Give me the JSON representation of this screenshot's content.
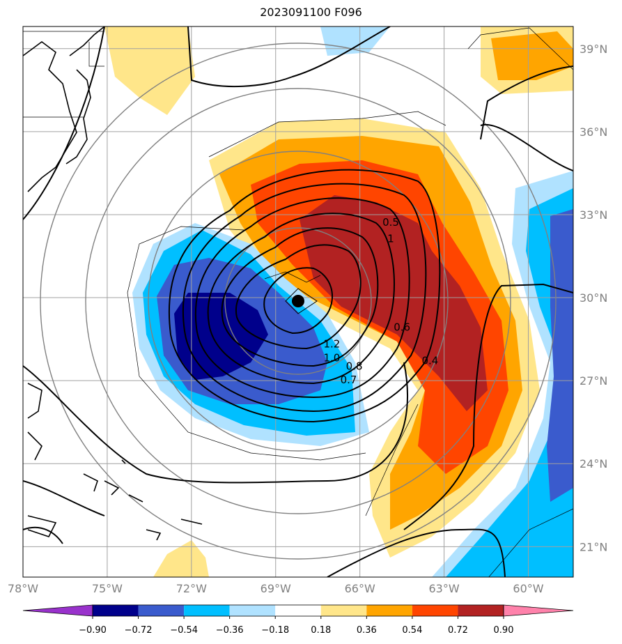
{
  "title": "2023091100 F096",
  "map": {
    "extent": {
      "lon_min": -78,
      "lon_max": -58.4,
      "lat_min": 19.9,
      "lat_max": 39.8
    },
    "storm_center": {
      "lon": -68.2,
      "lat": 29.9
    },
    "lon_ticks": [
      {
        "value": -78,
        "label": "78°W"
      },
      {
        "value": -75,
        "label": "75°W"
      },
      {
        "value": -72,
        "label": "72°W"
      },
      {
        "value": -69,
        "label": "69°W"
      },
      {
        "value": -66,
        "label": "66°W"
      },
      {
        "value": -63,
        "label": "63°W"
      },
      {
        "value": -60,
        "label": "60°W"
      }
    ],
    "lat_ticks": [
      {
        "value": 21,
        "label": "21°N"
      },
      {
        "value": 24,
        "label": "24°N"
      },
      {
        "value": 27,
        "label": "27°N"
      },
      {
        "value": 30,
        "label": "30°N"
      },
      {
        "value": 33,
        "label": "33°N"
      },
      {
        "value": 36,
        "label": "36°N"
      },
      {
        "value": 39,
        "label": "39°N"
      }
    ],
    "range_rings": "concentric grey circles around the storm center",
    "contour_labels": [
      {
        "text": "1.2",
        "lon": -67.0,
        "lat": 28.2
      },
      {
        "text": "1.0",
        "lon": -67.0,
        "lat": 27.7
      },
      {
        "text": "0.8",
        "lon": -66.2,
        "lat": 27.4
      },
      {
        "text": "0.7",
        "lon": -66.4,
        "lat": 26.9
      },
      {
        "text": "0.5",
        "lon": -64.9,
        "lat": 32.6
      },
      {
        "text": "1",
        "lon": -64.9,
        "lat": 32.0
      },
      {
        "text": "0.6",
        "lon": -64.5,
        "lat": 28.8
      },
      {
        "text": "0.4",
        "lon": -63.5,
        "lat": 27.6
      }
    ]
  },
  "colorbar": {
    "levels": [
      "−0.90",
      "−0.72",
      "−0.54",
      "−0.36",
      "−0.18",
      "0.18",
      "0.36",
      "0.54",
      "0.72",
      "0.90"
    ],
    "colors": [
      "#9932cc",
      "#00008b",
      "#3a5bcd",
      "#00bfff",
      "#b0e2ff",
      "#ffffff",
      "#ffe68a",
      "#ffa500",
      "#ff4500",
      "#b22222",
      "#ff82ab"
    ]
  }
}
